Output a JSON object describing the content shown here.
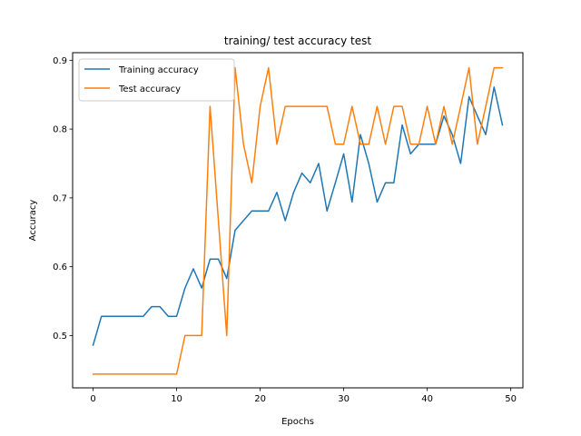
{
  "chart_data": {
    "type": "line",
    "title": "training/ test accuracy test",
    "xlabel": "Epochs",
    "ylabel": "Accuracy",
    "xlim": [
      -2.45,
      51.45
    ],
    "ylim": [
      0.424,
      0.911
    ],
    "xticks": [
      0,
      10,
      20,
      30,
      40,
      50
    ],
    "yticks": [
      0.5,
      0.6,
      0.7,
      0.8,
      0.9
    ],
    "x": [
      0,
      1,
      2,
      3,
      4,
      5,
      6,
      7,
      8,
      9,
      10,
      11,
      12,
      13,
      14,
      15,
      16,
      17,
      18,
      19,
      20,
      21,
      22,
      23,
      24,
      25,
      26,
      27,
      28,
      29,
      30,
      31,
      32,
      33,
      34,
      35,
      36,
      37,
      38,
      39,
      40,
      41,
      42,
      43,
      44,
      45,
      46,
      47,
      48,
      49
    ],
    "legend_position": "upper-left",
    "grid": false,
    "series": [
      {
        "name": "Training accuracy",
        "color": "#1f77b4",
        "values": [
          0.486,
          0.528,
          0.528,
          0.528,
          0.528,
          0.528,
          0.528,
          0.542,
          0.542,
          0.528,
          0.528,
          0.569,
          0.597,
          0.569,
          0.611,
          0.611,
          0.583,
          0.653,
          0.667,
          0.681,
          0.681,
          0.681,
          0.708,
          0.667,
          0.708,
          0.736,
          0.722,
          0.75,
          0.681,
          0.722,
          0.764,
          0.694,
          0.792,
          0.75,
          0.694,
          0.722,
          0.722,
          0.806,
          0.764,
          0.778,
          0.778,
          0.778,
          0.819,
          0.792,
          0.75,
          0.847,
          0.819,
          0.792,
          0.861,
          0.806
        ]
      },
      {
        "name": "Test accuracy",
        "color": "#ff7f0e",
        "values": [
          0.444,
          0.444,
          0.444,
          0.444,
          0.444,
          0.444,
          0.444,
          0.444,
          0.444,
          0.444,
          0.444,
          0.5,
          0.5,
          0.5,
          0.833,
          0.667,
          0.5,
          0.889,
          0.778,
          0.722,
          0.833,
          0.889,
          0.778,
          0.833,
          0.833,
          0.833,
          0.833,
          0.833,
          0.833,
          0.778,
          0.778,
          0.833,
          0.778,
          0.778,
          0.833,
          0.778,
          0.833,
          0.833,
          0.778,
          0.778,
          0.833,
          0.778,
          0.833,
          0.778,
          0.833,
          0.889,
          0.778,
          0.833,
          0.889,
          0.889
        ]
      }
    ]
  }
}
